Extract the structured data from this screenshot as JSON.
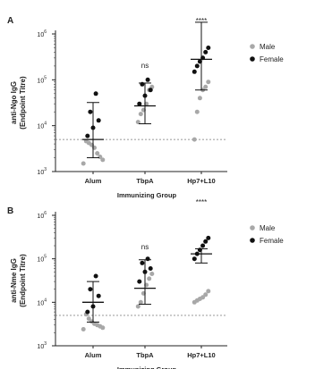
{
  "chart_data": [
    {
      "panel_label": "A",
      "type": "scatter",
      "title": "",
      "xlabel": "Immunizing Group",
      "ylabel": "anti-Ngo IgG",
      "ylabel2": "(Endpoint Titre)",
      "y_scale": "log",
      "ylim": [
        1000,
        1000000
      ],
      "y_ticks": [
        1000,
        10000,
        100000,
        1000000
      ],
      "y_tick_labels": [
        {
          "base": "10",
          "exp": "3"
        },
        {
          "base": "10",
          "exp": "4"
        },
        {
          "base": "10",
          "exp": "5"
        },
        {
          "base": "10",
          "exp": "6"
        }
      ],
      "categories": [
        "Alum",
        "TbpA",
        "Hp7+L10"
      ],
      "significance": [
        "",
        "ns",
        "****"
      ],
      "detection_limit": 5000,
      "legend": {
        "position": "top-right",
        "entries": [
          "Male",
          "Female"
        ]
      },
      "series": [
        {
          "name": "Male",
          "color": "#a8a8a8",
          "points": [
            [
              0,
              1500
            ],
            [
              0,
              1800
            ],
            [
              0,
              2100
            ],
            [
              0,
              2500
            ],
            [
              0,
              3300
            ],
            [
              0,
              4200
            ],
            [
              0,
              4600
            ],
            [
              0,
              3800
            ],
            [
              1,
              12000
            ],
            [
              1,
              18000
            ],
            [
              1,
              30000
            ],
            [
              1,
              22000
            ],
            [
              1,
              60000
            ],
            [
              1,
              70000
            ],
            [
              2,
              5000
            ],
            [
              2,
              20000
            ],
            [
              2,
              40000
            ],
            [
              2,
              60000
            ],
            [
              2,
              90000
            ],
            [
              2,
              70000
            ]
          ]
        },
        {
          "name": "Female",
          "color": "#111111",
          "points": [
            [
              0,
              6000
            ],
            [
              0,
              9000
            ],
            [
              0,
              13000
            ],
            [
              0,
              20000
            ],
            [
              0,
              50000
            ],
            [
              1,
              30000
            ],
            [
              1,
              45000
            ],
            [
              1,
              60000
            ],
            [
              1,
              80000
            ],
            [
              1,
              100000
            ],
            [
              2,
              150000
            ],
            [
              2,
              200000
            ],
            [
              2,
              250000
            ],
            [
              2,
              300000
            ],
            [
              2,
              400000
            ],
            [
              2,
              500000
            ]
          ]
        }
      ],
      "summary": [
        {
          "category": 0,
          "mean": 5000,
          "lower": 2000,
          "upper": 32000
        },
        {
          "category": 1,
          "mean": 27000,
          "lower": 11000,
          "upper": 85000
        },
        {
          "category": 2,
          "mean": 280000,
          "lower": 60000,
          "upper": 1800000
        }
      ]
    },
    {
      "panel_label": "B",
      "type": "scatter",
      "title": "",
      "xlabel": "Immunizing Group",
      "ylabel": "anti-Nme IgG",
      "ylabel2": "(Endpoint Titre)",
      "y_scale": "log",
      "ylim": [
        1000,
        1000000
      ],
      "y_ticks": [
        1000,
        10000,
        100000,
        1000000
      ],
      "y_tick_labels": [
        {
          "base": "10",
          "exp": "3"
        },
        {
          "base": "10",
          "exp": "4"
        },
        {
          "base": "10",
          "exp": "5"
        },
        {
          "base": "10",
          "exp": "6"
        }
      ],
      "categories": [
        "Alum",
        "TbpA",
        "Hp7+L10"
      ],
      "significance": [
        "",
        "ns",
        "****"
      ],
      "detection_limit": 5000,
      "legend": {
        "position": "top-right",
        "entries": [
          "Male",
          "Female"
        ]
      },
      "series": [
        {
          "name": "Male",
          "color": "#a8a8a8",
          "points": [
            [
              0,
              2400
            ],
            [
              0,
              2600
            ],
            [
              0,
              2800
            ],
            [
              0,
              3000
            ],
            [
              0,
              3200
            ],
            [
              0,
              3600
            ],
            [
              0,
              4200
            ],
            [
              0,
              5300
            ],
            [
              1,
              8000
            ],
            [
              1,
              10000
            ],
            [
              1,
              16000
            ],
            [
              1,
              25000
            ],
            [
              1,
              35000
            ],
            [
              1,
              45000
            ],
            [
              2,
              10000
            ],
            [
              2,
              11000
            ],
            [
              2,
              12000
            ],
            [
              2,
              13000
            ],
            [
              2,
              15000
            ],
            [
              2,
              18000
            ]
          ]
        },
        {
          "name": "Female",
          "color": "#111111",
          "points": [
            [
              0,
              6000
            ],
            [
              0,
              8000
            ],
            [
              0,
              14000
            ],
            [
              0,
              20000
            ],
            [
              0,
              40000
            ],
            [
              1,
              30000
            ],
            [
              1,
              50000
            ],
            [
              1,
              60000
            ],
            [
              1,
              80000
            ],
            [
              1,
              100000
            ],
            [
              2,
              100000
            ],
            [
              2,
              130000
            ],
            [
              2,
              160000
            ],
            [
              2,
              200000
            ],
            [
              2,
              250000
            ],
            [
              2,
              300000
            ]
          ]
        }
      ],
      "summary": [
        {
          "category": 0,
          "mean": 10000,
          "lower": 3500,
          "upper": 30000
        },
        {
          "category": 1,
          "mean": 21000,
          "lower": 9000,
          "upper": 95000
        },
        {
          "category": 2,
          "mean": 130000,
          "lower": 80000,
          "upper": 170000
        }
      ]
    }
  ]
}
